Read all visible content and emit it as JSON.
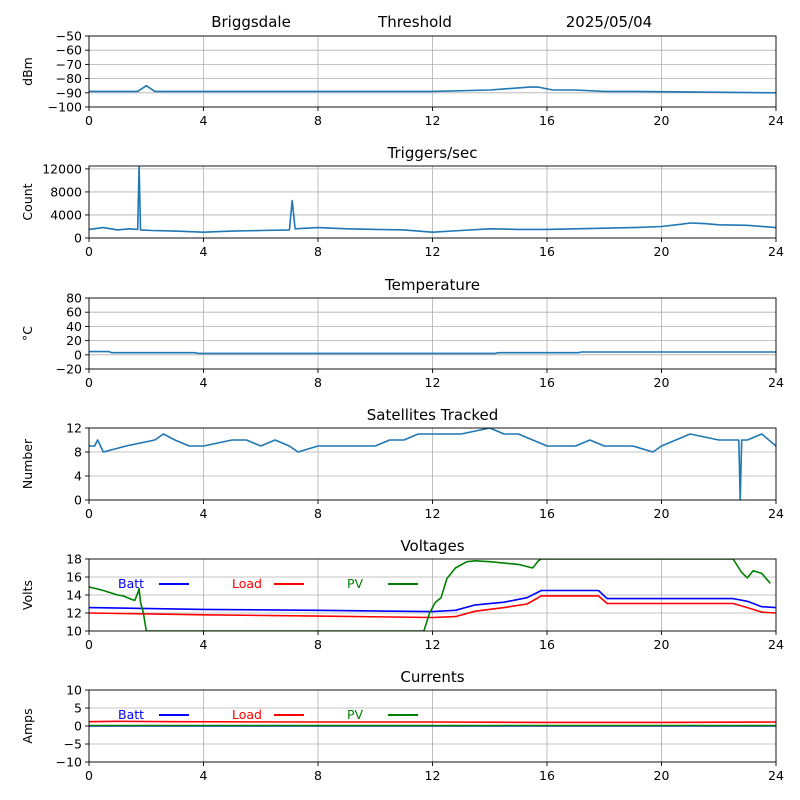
{
  "header": {
    "station": "Briggsdale",
    "mode": "Threshold",
    "date": "2025/05/04"
  },
  "colors": {
    "trace": "#1f77b4",
    "batt": "#0000ff",
    "load": "#ff0000",
    "pv": "#008000",
    "grid": "#b0b0b0"
  },
  "chart_data": [
    {
      "type": "line",
      "title": "",
      "xlabel": "",
      "ylabel": "dBm",
      "xlim": [
        0,
        24
      ],
      "ylim": [
        -100,
        -50
      ],
      "xticks": [
        0,
        4,
        8,
        12,
        16,
        20,
        24
      ],
      "yticks": [
        -100,
        -90,
        -80,
        -70,
        -60,
        -50
      ],
      "grid": true,
      "series": [
        {
          "color": "#1f77b4",
          "x": [
            0,
            1.7,
            2.0,
            2.3,
            3,
            8,
            12,
            14,
            15.4,
            15.7,
            16.2,
            17,
            18,
            19,
            24
          ],
          "y": [
            -89,
            -89,
            -85,
            -89,
            -89,
            -89,
            -89,
            -88,
            -86,
            -86,
            -88,
            -88,
            -89,
            -89,
            -90
          ]
        }
      ]
    },
    {
      "type": "line",
      "title": "Triggers/sec",
      "xlabel": "",
      "ylabel": "Count",
      "xlim": [
        0,
        24
      ],
      "ylim": [
        0,
        12500
      ],
      "xticks": [
        0,
        4,
        8,
        12,
        16,
        20,
        24
      ],
      "yticks": [
        0,
        4000,
        8000,
        12000
      ],
      "grid": true,
      "series": [
        {
          "color": "#1f77b4",
          "x": [
            0,
            0.5,
            1.0,
            1.4,
            1.7,
            1.75,
            1.8,
            2.2,
            3,
            4,
            5,
            6,
            7,
            7.1,
            7.2,
            8,
            9,
            10,
            11,
            12,
            13,
            14,
            15,
            16,
            17,
            18,
            19,
            20,
            20.7,
            21,
            21.5,
            22,
            23,
            24
          ],
          "y": [
            1500,
            1800,
            1400,
            1600,
            1500,
            12500,
            1400,
            1300,
            1200,
            1000,
            1200,
            1300,
            1400,
            6500,
            1600,
            1800,
            1600,
            1500,
            1400,
            1000,
            1300,
            1600,
            1500,
            1500,
            1600,
            1700,
            1800,
            2000,
            2400,
            2600,
            2500,
            2300,
            2200,
            1800
          ]
        }
      ]
    },
    {
      "type": "line",
      "title": "Temperature",
      "xlabel": "",
      "ylabel": "°C",
      "xlim": [
        0,
        24
      ],
      "ylim": [
        -20,
        80
      ],
      "xticks": [
        0,
        4,
        8,
        12,
        16,
        20,
        24
      ],
      "yticks": [
        -20,
        0,
        20,
        40,
        60,
        80
      ],
      "grid": true,
      "series": [
        {
          "color": "#1f77b4",
          "x": [
            0,
            0.7,
            0.8,
            3.7,
            3.8,
            14.2,
            14.3,
            17.1,
            17.2,
            24
          ],
          "y": [
            4.5,
            4.5,
            3,
            3,
            2,
            2,
            3,
            3,
            4,
            4
          ]
        }
      ]
    },
    {
      "type": "line",
      "title": "Satellites Tracked",
      "xlabel": "",
      "ylabel": "Number",
      "xlim": [
        0,
        24
      ],
      "ylim": [
        0,
        12
      ],
      "xticks": [
        0,
        4,
        8,
        12,
        16,
        20,
        24
      ],
      "yticks": [
        0,
        4,
        8,
        12
      ],
      "grid": true,
      "series": [
        {
          "color": "#1f77b4",
          "x": [
            0,
            0.2,
            0.3,
            0.4,
            0.5,
            1.3,
            2.3,
            2.6,
            3.0,
            3.5,
            4.0,
            5.0,
            5.5,
            6.0,
            6.5,
            7.0,
            7.3,
            8.0,
            9.0,
            10.0,
            10.5,
            11.0,
            11.5,
            12.0,
            13.0,
            14.0,
            14.5,
            15.0,
            15.5,
            16.0,
            17.0,
            17.5,
            18.0,
            19.0,
            19.7,
            20.0,
            20.5,
            21.0,
            22.0,
            22.7,
            22.75,
            22.8,
            23.0,
            23.5,
            24.0
          ],
          "y": [
            9,
            9,
            10,
            9,
            8,
            9,
            10,
            11,
            10,
            9,
            9,
            10,
            10,
            9,
            10,
            9,
            8,
            9,
            9,
            9,
            10,
            10,
            11,
            11,
            11,
            12,
            11,
            11,
            10,
            9,
            9,
            10,
            9,
            9,
            8,
            9,
            10,
            11,
            10,
            10,
            0,
            10,
            10,
            11,
            9
          ]
        }
      ]
    },
    {
      "type": "line",
      "title": "Voltages",
      "xlabel": "",
      "ylabel": "Volts",
      "xlim": [
        0,
        24
      ],
      "ylim": [
        10,
        18
      ],
      "xticks": [
        0,
        4,
        8,
        12,
        16,
        20,
        24
      ],
      "yticks": [
        10,
        12,
        14,
        16,
        18
      ],
      "grid": true,
      "legend": "top-left",
      "series": [
        {
          "name": "Batt",
          "color": "#0000ff",
          "x": [
            0,
            4,
            8,
            12,
            12.8,
            13.5,
            14.5,
            15.3,
            15.8,
            16.5,
            17.8,
            18.1,
            19,
            20,
            21,
            22.5,
            23.0,
            23.5,
            24
          ],
          "y": [
            12.6,
            12.4,
            12.3,
            12.15,
            12.3,
            12.9,
            13.2,
            13.7,
            14.5,
            14.5,
            14.5,
            13.6,
            13.6,
            13.6,
            13.6,
            13.6,
            13.3,
            12.7,
            12.6
          ]
        },
        {
          "name": "Load",
          "color": "#ff0000",
          "x": [
            0,
            4,
            8,
            12,
            12.8,
            13.5,
            14.5,
            15.3,
            15.8,
            16.5,
            17.8,
            18.1,
            19,
            20,
            21,
            22.5,
            23.0,
            23.5,
            24
          ],
          "y": [
            12.0,
            11.8,
            11.65,
            11.5,
            11.6,
            12.2,
            12.6,
            13.0,
            13.9,
            13.9,
            13.9,
            13.05,
            13.05,
            13.05,
            13.05,
            13.05,
            12.6,
            12.1,
            12.0
          ]
        },
        {
          "name": "PV",
          "color": "#008000",
          "x": [
            0,
            0.5,
            1.0,
            1.2,
            1.5,
            1.6,
            1.7,
            1.75,
            1.8,
            1.9,
            2.0,
            11.7,
            11.9,
            12.1,
            12.3,
            12.5,
            12.8,
            13.2,
            13.5,
            14.0,
            15.0,
            15.5,
            15.7,
            15.8,
            22.5,
            22.8,
            23.0,
            23.2,
            23.5,
            23.8
          ],
          "y": [
            14.9,
            14.5,
            14.0,
            13.9,
            13.5,
            13.4,
            14.2,
            14.7,
            13.2,
            12.0,
            10.0,
            10.0,
            12.0,
            13.2,
            13.7,
            15.8,
            17.0,
            17.7,
            17.8,
            17.7,
            17.4,
            17.0,
            17.8,
            18.0,
            18.0,
            16.5,
            15.9,
            16.7,
            16.4,
            15.3
          ]
        }
      ]
    },
    {
      "type": "line",
      "title": "Currents",
      "xlabel": "",
      "ylabel": "Amps",
      "xlim": [
        0,
        24
      ],
      "ylim": [
        -10,
        10
      ],
      "xticks": [
        0,
        4,
        8,
        12,
        16,
        20,
        24
      ],
      "yticks": [
        -10,
        -5,
        0,
        5,
        10
      ],
      "grid": true,
      "legend": "top-left",
      "series": [
        {
          "name": "Batt",
          "color": "#0000ff",
          "x": [
            0,
            24
          ],
          "y": [
            0,
            0
          ]
        },
        {
          "name": "Load",
          "color": "#ff0000",
          "x": [
            0,
            1,
            3,
            8,
            12,
            16,
            20,
            24
          ],
          "y": [
            1.2,
            1.3,
            1.2,
            1.1,
            1.1,
            1.0,
            1.0,
            1.1
          ]
        },
        {
          "name": "PV",
          "color": "#008000",
          "x": [
            0,
            24
          ],
          "y": [
            0.1,
            0.1
          ]
        }
      ]
    }
  ]
}
